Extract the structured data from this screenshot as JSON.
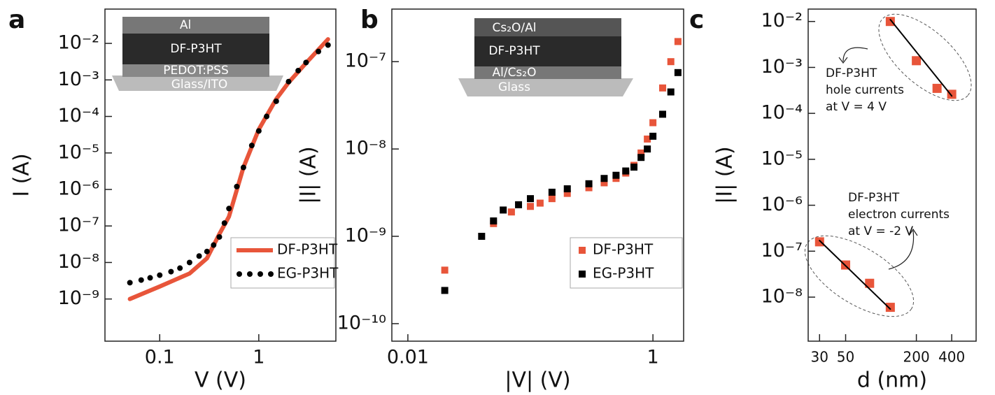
{
  "chart_data": [
    {
      "type": "line",
      "panel_label": "a",
      "xlabel": "V (V)",
      "ylabel": "I (A)",
      "xscale": "log",
      "yscale": "log",
      "xlim": [
        0.028,
        6
      ],
      "ylim": [
        7e-11,
        0.087
      ],
      "xticks": [
        0.1,
        1
      ],
      "yticks": [
        {
          "value": 0.01,
          "label": "10⁻²"
        },
        {
          "value": 0.001,
          "label": "10⁻³"
        },
        {
          "value": 0.0001,
          "label": "10⁻⁴"
        },
        {
          "value": 1e-05,
          "label": "10⁻⁵"
        },
        {
          "value": 1e-06,
          "label": "10⁻⁶"
        },
        {
          "value": 1e-07,
          "label": "10⁻⁷"
        },
        {
          "value": 1e-08,
          "label": "10⁻⁸"
        },
        {
          "value": 1e-09,
          "label": "10⁻⁹"
        }
      ],
      "legend": "lower right",
      "inset_layers": [
        "Al",
        "DF-P3HT",
        "PEDOT:PSS",
        "Glass/ITO"
      ],
      "series": [
        {
          "name": "DF-P3HT",
          "color": "#e8553a",
          "marker": "line",
          "x": [
            0.05,
            0.1,
            0.2,
            0.3,
            0.4,
            0.5,
            0.7,
            1,
            1.5,
            2,
            3,
            5
          ],
          "values": [
            1e-09,
            2.2e-09,
            5e-09,
            1.3e-08,
            6e-08,
            1.8e-07,
            4e-06,
            4.4e-05,
            0.0003,
            0.00085,
            0.0029,
            0.013
          ]
        },
        {
          "name": "EG-P3HT",
          "color": "#000000",
          "marker": "circle",
          "x": [
            0.05,
            0.065,
            0.08,
            0.1,
            0.13,
            0.16,
            0.2,
            0.25,
            0.3,
            0.35,
            0.4,
            0.45,
            0.5,
            0.6,
            0.7,
            0.85,
            1,
            1.2,
            1.5,
            2,
            2.5,
            3,
            4,
            5
          ],
          "values": [
            2.8e-09,
            3.3e-09,
            3.8e-09,
            4.5e-09,
            5.6e-09,
            7e-09,
            1e-08,
            1.5e-08,
            2e-08,
            3e-08,
            5e-08,
            1.2e-07,
            3e-07,
            1.2e-06,
            4e-06,
            1.6e-05,
            4e-05,
            0.0001,
            0.00026,
            0.0009,
            0.0018,
            0.003,
            0.006,
            0.009
          ]
        }
      ]
    },
    {
      "type": "scatter",
      "panel_label": "b",
      "xlabel": "|V| (V)",
      "ylabel": "|I| (A)",
      "xscale": "log",
      "yscale": "log",
      "xlim": [
        0.0074,
        1.78
      ],
      "ylim": [
        6.3e-11,
        4e-07
      ],
      "xticks": [
        0.01,
        1
      ],
      "yticks": [
        {
          "value": 1e-07,
          "label": "10⁻⁷"
        },
        {
          "value": 1e-08,
          "label": "10⁻⁸"
        },
        {
          "value": 1e-09,
          "label": "10⁻⁹"
        },
        {
          "value": 1e-10,
          "label": "10⁻¹⁰"
        }
      ],
      "legend": "lower right",
      "inset_layers": [
        "Cs₂O/Al",
        "DF-P3HT",
        "Al/Cs₂O",
        "Glass"
      ],
      "series": [
        {
          "name": "DF-P3HT",
          "color": "#e8553a",
          "marker": "square",
          "x": [
            0.02,
            0.05,
            0.07,
            0.1,
            0.12,
            0.15,
            0.2,
            0.3,
            0.4,
            0.5,
            0.6,
            0.7,
            0.8,
            0.9,
            1,
            1.2,
            1.4,
            1.6
          ],
          "values": [
            4.1e-10,
            1.4e-09,
            1.9e-09,
            2.2e-09,
            2.4e-09,
            2.7e-09,
            3.1e-09,
            3.6e-09,
            4.1e-09,
            4.6e-09,
            5.3e-09,
            6.5e-09,
            9e-09,
            1.3e-08,
            2e-08,
            5e-08,
            1e-07,
            1.7e-07
          ]
        },
        {
          "name": "EG-P3HT",
          "color": "#000000",
          "marker": "square",
          "x": [
            0.02,
            0.04,
            0.05,
            0.06,
            0.08,
            0.1,
            0.15,
            0.2,
            0.3,
            0.4,
            0.5,
            0.6,
            0.7,
            0.8,
            0.9,
            1,
            1.2,
            1.4,
            1.6
          ],
          "values": [
            2.4e-10,
            1e-09,
            1.5e-09,
            2e-09,
            2.3e-09,
            2.7e-09,
            3.2e-09,
            3.5e-09,
            4e-09,
            4.6e-09,
            5e-09,
            5.6e-09,
            6.2e-09,
            8e-09,
            1e-08,
            1.4e-08,
            2.5e-08,
            4.5e-08,
            7.5e-08
          ]
        }
      ]
    },
    {
      "type": "scatter",
      "panel_label": "c",
      "xlabel": "d (nm)",
      "ylabel": "|I| (A)",
      "xscale": "log",
      "yscale": "log",
      "xlim": [
        24,
        645
      ],
      "ylim": [
        1.1e-09,
        0.0186
      ],
      "xticks": [
        30,
        50,
        200,
        400
      ],
      "yticks": [
        {
          "value": 0.01,
          "label": "10⁻²"
        },
        {
          "value": 0.001,
          "label": "10⁻³"
        },
        {
          "value": 0.0001,
          "label": "10⁻⁴"
        },
        {
          "value": 1e-05,
          "label": "10⁻⁵"
        },
        {
          "value": 1e-06,
          "label": "10⁻⁶"
        },
        {
          "value": 1e-07,
          "label": "10⁻⁷"
        },
        {
          "value": 1e-08,
          "label": "10⁻⁸"
        }
      ],
      "annotations": [
        [
          "DF-P3HT",
          "hole currents",
          "at V = 4 V"
        ],
        [
          "DF-P3HT",
          "electron currents",
          "at V = -2 V"
        ]
      ],
      "series": [
        {
          "color": "#e8553a",
          "marker": "square",
          "x": [
            120,
            200,
            300,
            400
          ],
          "values": [
            0.01,
            0.0014,
            0.00035,
            0.00026
          ]
        },
        {
          "color": "#e8553a",
          "marker": "square",
          "x": [
            30,
            50,
            80,
            120
          ],
          "values": [
            1.6e-07,
            5e-08,
            2e-08,
            6e-09
          ]
        },
        {
          "color": "#000000",
          "marker": "fit",
          "x": [
            120,
            400
          ],
          "values": [
            0.011,
            0.00024
          ]
        },
        {
          "color": "#000000",
          "marker": "fit",
          "x": [
            30,
            120
          ],
          "values": [
            1.7e-07,
            5.5e-09
          ]
        }
      ]
    }
  ]
}
